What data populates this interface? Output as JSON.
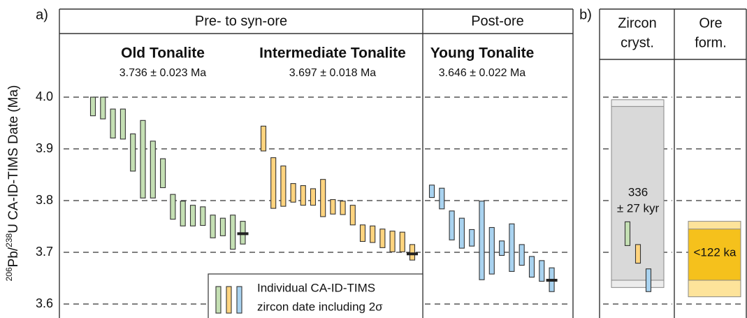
{
  "chart_data": {
    "type": "errorbar",
    "panel_labels": [
      "a)",
      "b)"
    ],
    "headers": [
      "Pre- to syn-ore",
      "Post-ore"
    ],
    "ylabel_parts": [
      "206",
      "Pb/",
      "238",
      "U CA-ID-TIMS Date (Ma)"
    ],
    "ylim": [
      3.573,
      4.123
    ],
    "yticks": [
      3.6,
      3.7,
      3.8,
      3.9,
      {
        "value": 4,
        "label": "4.0"
      }
    ],
    "grid": true,
    "series": [
      {
        "name": "Old Tonalite",
        "color": "#c5e0b4",
        "values": [
          3.982,
          3.979,
          3.949,
          3.948,
          3.893,
          3.88,
          3.86,
          3.853,
          3.788,
          3.775,
          3.771,
          3.77,
          3.75,
          3.749,
          3.739,
          3.738
        ],
        "errors": [
          0.018,
          0.021,
          0.028,
          0.029,
          0.036,
          0.075,
          0.055,
          0.028,
          0.024,
          0.024,
          0.02,
          0.018,
          0.022,
          0.017,
          0.033,
          0.022
        ],
        "mean": 3.736,
        "mean_error": 0.023,
        "mean_label": "3.736 ± 0.023 Ma"
      },
      {
        "name": "Intermediate Tonalite",
        "color": "#ffd47f",
        "values": [
          3.92,
          3.834,
          3.828,
          3.815,
          3.81,
          3.807,
          3.805,
          3.788,
          3.786,
          3.772,
          3.737,
          3.735,
          3.727,
          3.721,
          3.72,
          3.7
        ],
        "errors": [
          0.024,
          0.049,
          0.039,
          0.018,
          0.019,
          0.016,
          0.036,
          0.014,
          0.013,
          0.019,
          0.016,
          0.016,
          0.018,
          0.02,
          0.019,
          0.015
        ],
        "mean": 3.697,
        "mean_error": 0.018,
        "mean_label": "3.697 ± 0.018 Ma"
      },
      {
        "name": "Young Tonalite",
        "color": "#a9d3f0",
        "values": [
          3.818,
          3.804,
          3.752,
          3.737,
          3.728,
          3.723,
          3.703,
          3.708,
          3.709,
          3.695,
          3.672,
          3.664,
          3.647
        ],
        "errors": [
          0.012,
          0.02,
          0.028,
          0.029,
          0.016,
          0.076,
          0.045,
          0.014,
          0.046,
          0.02,
          0.02,
          0.02,
          0.023
        ],
        "mean": 3.646,
        "mean_error": 0.022,
        "mean_label": "3.646 ± 0.022 Ma"
      }
    ],
    "legend": {
      "lines": [
        "Individual CA-ID-TIMS",
        "zircon date including 2σ"
      ]
    },
    "panel_b": {
      "columns": [
        [
          "Zircon",
          "cryst."
        ],
        [
          "Ore",
          "form."
        ]
      ],
      "zircon": {
        "outer": [
          3.632,
          3.995
        ],
        "inner": [
          3.646,
          3.982
        ],
        "color": "#d9d9d9",
        "outer_color": "#ececec",
        "label_lines": [
          "336",
          "± 27 kyr"
        ]
      },
      "ore": {
        "outer": [
          3.614,
          3.76
        ],
        "inner": [
          3.646,
          3.745
        ],
        "color": "#f5c11c",
        "outer_color": "#fde39a",
        "label": "<122 ka"
      }
    }
  }
}
